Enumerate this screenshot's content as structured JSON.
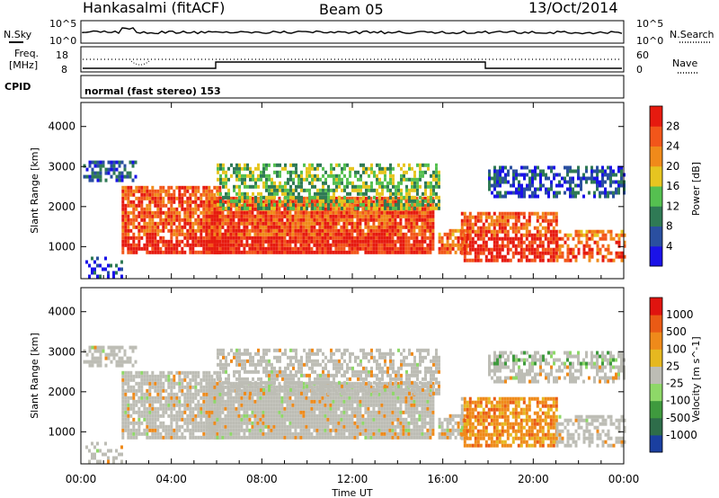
{
  "header": {
    "station": "Hankasalmi (fitACF)",
    "beam": "Beam 05",
    "date": "13/Oct/2014"
  },
  "noise_panel": {
    "left_label": "N.Sky",
    "left_ticks": [
      "10^5",
      "10^0"
    ],
    "right_label": "N.Search",
    "right_ticks": [
      "10^5",
      "10^0"
    ]
  },
  "freq_panel": {
    "label_line1": "Freq.",
    "label_line2": "[MHz]",
    "left_ticks": [
      "18",
      "8"
    ],
    "right_label": "Nave",
    "right_ticks": [
      "60",
      "0"
    ]
  },
  "cpid": {
    "label": "CPID",
    "value": "normal (fast stereo) 153"
  },
  "chart_data": [
    {
      "type": "heatmap",
      "name": "power",
      "ylabel": "Slant Range [km]",
      "y_ticks": [
        "1000",
        "2000",
        "3000",
        "4000"
      ],
      "ylim": [
        200,
        4600
      ],
      "xlim": [
        0,
        24
      ],
      "colorbar": {
        "label": "Power [dB]",
        "ticks": [
          "4",
          "8",
          "12",
          "16",
          "20",
          "24",
          "28"
        ],
        "colors": [
          "#1a12e8",
          "#2a4fa0",
          "#2f7a55",
          "#55c050",
          "#e6c520",
          "#f08a1a",
          "#f2561a",
          "#e61a0f"
        ]
      }
    },
    {
      "type": "heatmap",
      "name": "velocity",
      "ylabel": "Slant Range [km]",
      "y_ticks": [
        "1000",
        "2000",
        "3000",
        "4000"
      ],
      "ylim": [
        200,
        4600
      ],
      "xlim": [
        0,
        24
      ],
      "x_ticks": [
        "00:00",
        "04:00",
        "08:00",
        "12:00",
        "16:00",
        "20:00",
        "00:00"
      ],
      "xlabel": "Time UT",
      "colorbar": {
        "label": "Velocity [m s^-1]",
        "ticks": [
          "1000",
          "500",
          "100",
          "25",
          "-25",
          "-100",
          "-500",
          "-1000"
        ],
        "colors": [
          "#1a3fa0",
          "#2e6d4a",
          "#3f9a3e",
          "#8ed868",
          "#bdbdb5",
          "#e6b820",
          "#ef8a1a",
          "#ea5a15",
          "#e0140f"
        ]
      }
    }
  ]
}
